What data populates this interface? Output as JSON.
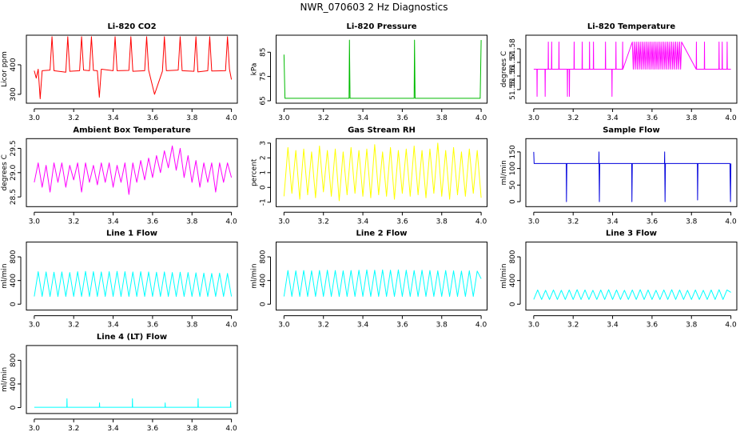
{
  "title": "NWR_070603 2 Hz Diagnostics",
  "chart_data": [
    {
      "type": "line",
      "title": "Li-820 CO2",
      "ylabel": "Licor ppm",
      "color": "#ff0000",
      "xlim": [
        2.96,
        4.03
      ],
      "xticks": [
        {
          "value": 3,
          "label": "3.0"
        },
        3.2,
        3.4,
        3.6,
        3.8,
        {
          "value": 4,
          "label": "4.0"
        }
      ],
      "ylim": [
        270,
        500
      ],
      "yticks": [
        300,
        400
      ],
      "x": [
        3,
        3.01,
        3.02,
        3.03,
        3.04,
        3.08,
        3.09,
        3.1,
        3.16,
        3.17,
        3.18,
        3.23,
        3.24,
        3.25,
        3.28,
        3.29,
        3.3,
        3.32,
        3.33,
        3.34,
        3.4,
        3.41,
        3.42,
        3.48,
        3.49,
        3.5,
        3.56,
        3.57,
        3.58,
        3.61,
        3.65,
        3.66,
        3.67,
        3.73,
        3.74,
        3.75,
        3.81,
        3.82,
        3.83,
        3.88,
        3.89,
        3.9,
        3.97,
        3.98,
        3.99,
        4
      ],
      "values": [
        380,
        355,
        385,
        285,
        380,
        382,
        495,
        380,
        375,
        495,
        378,
        380,
        495,
        382,
        380,
        495,
        381,
        380,
        290,
        385,
        380,
        495,
        380,
        381,
        495,
        378,
        380,
        495,
        382,
        300,
        378,
        495,
        380,
        382,
        495,
        380,
        378,
        495,
        376,
        380,
        495,
        379,
        380,
        495,
        385,
        350
      ]
    },
    {
      "type": "line",
      "title": "Li-820 Pressure",
      "ylabel": "kPa",
      "color": "#00bb00",
      "xlim": [
        2.96,
        4.03
      ],
      "xticks": [
        {
          "value": 3,
          "label": "3.0"
        },
        3.2,
        3.4,
        3.6,
        3.8,
        {
          "value": 4,
          "label": "4.0"
        }
      ],
      "ylim": [
        64,
        92
      ],
      "yticks": [
        65,
        75,
        85
      ],
      "x": [
        3,
        3.005,
        3.01,
        3.33,
        3.332,
        3.335,
        3.66,
        3.662,
        3.665,
        3.995,
        4
      ],
      "values": [
        84,
        66,
        66,
        66,
        90,
        66,
        66,
        90,
        66,
        66,
        90
      ]
    },
    {
      "type": "line",
      "title": "Li-820 Temperature",
      "ylabel": "degrees C",
      "color": "#ff00ff",
      "xlim": [
        2.96,
        4.03
      ],
      "xticks": [
        {
          "value": 3,
          "label": "3.0"
        },
        3.2,
        3.4,
        3.6,
        3.8,
        {
          "value": 4,
          "label": "4.0"
        }
      ],
      "ylim": [
        51.54,
        51.59
      ],
      "yticks": [
        51.55,
        51.56,
        51.57,
        51.58
      ],
      "x": [
        3,
        3.016,
        3.017,
        3.018,
        3.057,
        3.058,
        3.059,
        3.073,
        3.074,
        3.075,
        3.09,
        3.091,
        3.092,
        3.127,
        3.128,
        3.129,
        3.17,
        3.171,
        3.172,
        3.18,
        3.181,
        3.182,
        3.204,
        3.205,
        3.206,
        3.245,
        3.246,
        3.247,
        3.282,
        3.283,
        3.284,
        3.302,
        3.303,
        3.304,
        3.363,
        3.364,
        3.365,
        3.396,
        3.397,
        3.398,
        3.416,
        3.417,
        3.418,
        3.45,
        3.451,
        3.452,
        3.5,
        3.505,
        3.51,
        3.515,
        3.52,
        3.525,
        3.53,
        3.535,
        3.54,
        3.545,
        3.55,
        3.555,
        3.56,
        3.565,
        3.57,
        3.575,
        3.58,
        3.585,
        3.59,
        3.595,
        3.6,
        3.605,
        3.61,
        3.615,
        3.62,
        3.625,
        3.63,
        3.635,
        3.64,
        3.645,
        3.65,
        3.655,
        3.66,
        3.665,
        3.67,
        3.675,
        3.68,
        3.685,
        3.69,
        3.695,
        3.7,
        3.705,
        3.71,
        3.715,
        3.72,
        3.725,
        3.73,
        3.735,
        3.74,
        3.745,
        3.75,
        3.824,
        3.825,
        3.826,
        3.865,
        3.866,
        3.867,
        3.939,
        3.94,
        3.941,
        3.955,
        3.956,
        3.957,
        3.98,
        3.981,
        3.982,
        4
      ],
      "values": [
        51.565,
        51.565,
        51.545,
        51.565,
        51.565,
        51.545,
        51.565,
        51.565,
        51.585,
        51.565,
        51.565,
        51.585,
        51.565,
        51.565,
        51.585,
        51.565,
        51.565,
        51.545,
        51.565,
        51.565,
        51.545,
        51.565,
        51.565,
        51.585,
        51.565,
        51.565,
        51.585,
        51.565,
        51.565,
        51.585,
        51.565,
        51.565,
        51.585,
        51.565,
        51.565,
        51.585,
        51.565,
        51.565,
        51.545,
        51.565,
        51.565,
        51.585,
        51.565,
        51.565,
        51.585,
        51.565,
        51.585,
        51.565,
        51.585,
        51.565,
        51.585,
        51.565,
        51.585,
        51.565,
        51.585,
        51.565,
        51.585,
        51.565,
        51.585,
        51.565,
        51.585,
        51.565,
        51.585,
        51.565,
        51.585,
        51.565,
        51.585,
        51.565,
        51.585,
        51.565,
        51.585,
        51.565,
        51.585,
        51.565,
        51.585,
        51.565,
        51.585,
        51.565,
        51.585,
        51.565,
        51.585,
        51.565,
        51.585,
        51.565,
        51.585,
        51.565,
        51.585,
        51.565,
        51.585,
        51.565,
        51.585,
        51.565,
        51.585,
        51.565,
        51.585,
        51.565,
        51.585,
        51.565,
        51.585,
        51.565,
        51.565,
        51.585,
        51.565,
        51.565,
        51.585,
        51.565,
        51.565,
        51.585,
        51.565,
        51.565,
        51.585,
        51.565,
        51.565
      ]
    },
    {
      "type": "line",
      "title": "Ambient Box Temperature",
      "ylabel": "degrees C",
      "color": "#ff00ff",
      "xlim": [
        2.96,
        4.03
      ],
      "xticks": [
        {
          "value": 3,
          "label": "3.0"
        },
        3.2,
        3.4,
        3.6,
        3.8,
        {
          "value": 4,
          "label": "4.0"
        }
      ],
      "ylim": [
        28.3,
        29.7
      ],
      "yticks": [
        28.5,
        {
          "value": 29,
          "label": "29.0"
        },
        29.5
      ],
      "x": [
        3,
        3.02,
        3.04,
        3.06,
        3.08,
        3.1,
        3.12,
        3.14,
        3.16,
        3.18,
        3.2,
        3.22,
        3.24,
        3.26,
        3.28,
        3.3,
        3.32,
        3.34,
        3.36,
        3.38,
        3.4,
        3.42,
        3.44,
        3.46,
        3.48,
        3.5,
        3.52,
        3.54,
        3.56,
        3.58,
        3.6,
        3.62,
        3.64,
        3.66,
        3.68,
        3.7,
        3.72,
        3.74,
        3.76,
        3.78,
        3.8,
        3.82,
        3.84,
        3.86,
        3.88,
        3.9,
        3.92,
        3.94,
        3.96,
        3.98,
        4
      ],
      "values": [
        28.8,
        29.2,
        28.7,
        29.15,
        28.6,
        29.2,
        28.8,
        29.2,
        28.7,
        29.15,
        28.85,
        29.2,
        28.6,
        29.2,
        28.8,
        29.15,
        28.75,
        29.2,
        28.8,
        29.2,
        28.7,
        29.15,
        28.8,
        29.2,
        28.55,
        29.2,
        28.8,
        29.25,
        28.85,
        29.3,
        28.9,
        29.35,
        29.0,
        29.45,
        29.1,
        29.55,
        29.05,
        29.5,
        28.9,
        29.35,
        28.8,
        29.25,
        28.7,
        29.2,
        28.8,
        29.2,
        28.6,
        29.2,
        28.8,
        29.2,
        28.9
      ]
    },
    {
      "type": "line",
      "title": "Gas Stream RH",
      "ylabel": "percent",
      "color": "#ffff00",
      "xlim": [
        2.96,
        4.03
      ],
      "xticks": [
        {
          "value": 3,
          "label": "3.0"
        },
        3.2,
        3.4,
        3.6,
        3.8,
        {
          "value": 4,
          "label": "4.0"
        }
      ],
      "ylim": [
        -1.3,
        3.3
      ],
      "yticks": [
        -1,
        0,
        1,
        2,
        3
      ],
      "x": [
        3,
        3.02,
        3.04,
        3.06,
        3.08,
        3.1,
        3.12,
        3.14,
        3.16,
        3.18,
        3.2,
        3.22,
        3.24,
        3.26,
        3.28,
        3.3,
        3.32,
        3.34,
        3.36,
        3.38,
        3.4,
        3.42,
        3.44,
        3.46,
        3.48,
        3.5,
        3.52,
        3.54,
        3.56,
        3.58,
        3.6,
        3.62,
        3.64,
        3.66,
        3.68,
        3.7,
        3.72,
        3.74,
        3.76,
        3.78,
        3.8,
        3.82,
        3.84,
        3.86,
        3.88,
        3.9,
        3.92,
        3.94,
        3.96,
        3.98,
        4
      ],
      "values": [
        -0.6,
        2.7,
        -0.4,
        2.5,
        -0.8,
        2.6,
        -0.5,
        2.4,
        -0.7,
        2.8,
        -0.3,
        2.5,
        -0.6,
        2.6,
        -0.9,
        2.4,
        -0.5,
        2.7,
        -0.4,
        2.5,
        -0.6,
        2.6,
        -0.7,
        2.9,
        -0.5,
        2.4,
        -0.6,
        2.7,
        -0.8,
        2.5,
        -0.4,
        2.6,
        -0.6,
        2.8,
        -0.5,
        2.5,
        -0.7,
        2.6,
        -0.4,
        3.0,
        -0.6,
        2.5,
        -0.8,
        2.7,
        -0.5,
        2.4,
        -0.6,
        2.6,
        -0.4,
        2.5,
        -0.7
      ]
    },
    {
      "type": "line",
      "title": "Sample Flow",
      "ylabel": "ml/min",
      "color": "#0000dd",
      "xlim": [
        2.96,
        4.03
      ],
      "xticks": [
        {
          "value": 3,
          "label": "3.0"
        },
        3.2,
        3.4,
        3.6,
        3.8,
        {
          "value": 4,
          "label": "4.0"
        }
      ],
      "ylim": [
        -15,
        190
      ],
      "yticks": [
        0,
        50,
        100,
        150
      ],
      "x": [
        3,
        3.002,
        3.004,
        3.165,
        3.166,
        3.168,
        3.33,
        3.331,
        3.333,
        3.335,
        3.497,
        3.498,
        3.5,
        3.663,
        3.664,
        3.666,
        3.668,
        3.83,
        3.831,
        3.833,
        3.995,
        3.998,
        4
      ],
      "values": [
        150,
        115,
        115,
        115,
        0,
        115,
        115,
        150,
        0,
        115,
        115,
        0,
        115,
        115,
        150,
        0,
        115,
        115,
        5,
        115,
        115,
        0,
        115
      ]
    },
    {
      "type": "line",
      "title": "Line 1 Flow",
      "ylabel": "ml/min",
      "color": "#00ffff",
      "xlim": [
        2.96,
        4.03
      ],
      "xticks": [
        {
          "value": 3,
          "label": "3.0"
        },
        3.2,
        3.4,
        3.6,
        3.8,
        {
          "value": 4,
          "label": "4.0"
        }
      ],
      "ylim": [
        -100,
        1050
      ],
      "yticks": [
        0,
        400,
        800
      ],
      "x": [
        3,
        3.02,
        3.04,
        3.06,
        3.08,
        3.1,
        3.12,
        3.14,
        3.16,
        3.18,
        3.2,
        3.22,
        3.24,
        3.26,
        3.28,
        3.3,
        3.32,
        3.34,
        3.36,
        3.38,
        3.4,
        3.42,
        3.44,
        3.46,
        3.48,
        3.5,
        3.52,
        3.54,
        3.56,
        3.58,
        3.6,
        3.62,
        3.64,
        3.66,
        3.68,
        3.7,
        3.72,
        3.74,
        3.76,
        3.78,
        3.8,
        3.82,
        3.84,
        3.86,
        3.88,
        3.9,
        3.92,
        3.94,
        3.96,
        3.98,
        4
      ],
      "values": [
        130,
        550,
        130,
        545,
        130,
        540,
        130,
        545,
        130,
        535,
        130,
        550,
        130,
        555,
        130,
        550,
        130,
        545,
        130,
        550,
        130,
        555,
        130,
        550,
        130,
        545,
        130,
        550,
        130,
        545,
        130,
        540,
        130,
        545,
        130,
        535,
        130,
        540,
        130,
        535,
        130,
        530,
        130,
        525,
        130,
        520,
        130,
        525,
        130,
        520,
        130
      ]
    },
    {
      "type": "line",
      "title": "Line 2 Flow",
      "ylabel": "ml/min",
      "color": "#00ffff",
      "xlim": [
        2.96,
        4.03
      ],
      "xticks": [
        {
          "value": 3,
          "label": "3.0"
        },
        3.2,
        3.4,
        3.6,
        3.8,
        {
          "value": 4,
          "label": "4.0"
        }
      ],
      "ylim": [
        -100,
        1050
      ],
      "yticks": [
        0,
        400,
        800
      ],
      "x": [
        3,
        3.02,
        3.04,
        3.06,
        3.08,
        3.1,
        3.12,
        3.14,
        3.16,
        3.18,
        3.2,
        3.22,
        3.24,
        3.26,
        3.28,
        3.3,
        3.32,
        3.34,
        3.36,
        3.38,
        3.4,
        3.42,
        3.44,
        3.46,
        3.48,
        3.5,
        3.52,
        3.54,
        3.56,
        3.58,
        3.6,
        3.62,
        3.64,
        3.66,
        3.68,
        3.7,
        3.72,
        3.74,
        3.76,
        3.78,
        3.8,
        3.82,
        3.84,
        3.86,
        3.88,
        3.9,
        3.92,
        3.94,
        3.96,
        3.98,
        4
      ],
      "values": [
        130,
        570,
        130,
        565,
        130,
        570,
        130,
        565,
        130,
        570,
        130,
        575,
        130,
        570,
        130,
        565,
        130,
        570,
        130,
        575,
        130,
        580,
        130,
        575,
        130,
        580,
        130,
        575,
        130,
        580,
        130,
        575,
        130,
        570,
        130,
        575,
        130,
        570,
        130,
        565,
        130,
        570,
        130,
        565,
        130,
        560,
        130,
        565,
        130,
        560,
        430
      ]
    },
    {
      "type": "line",
      "title": "Line 3 Flow",
      "ylabel": "ml/min",
      "color": "#00ffff",
      "xlim": [
        2.96,
        4.03
      ],
      "xticks": [
        {
          "value": 3,
          "label": "3.0"
        },
        3.2,
        3.4,
        3.6,
        3.8,
        {
          "value": 4,
          "label": "4.0"
        }
      ],
      "ylim": [
        -100,
        1050
      ],
      "yticks": [
        0,
        400,
        800
      ],
      "x": [
        3,
        3.02,
        3.04,
        3.06,
        3.08,
        3.1,
        3.12,
        3.14,
        3.16,
        3.18,
        3.2,
        3.22,
        3.24,
        3.26,
        3.28,
        3.3,
        3.32,
        3.34,
        3.36,
        3.38,
        3.4,
        3.42,
        3.44,
        3.46,
        3.48,
        3.5,
        3.52,
        3.54,
        3.56,
        3.58,
        3.6,
        3.62,
        3.64,
        3.66,
        3.68,
        3.7,
        3.72,
        3.74,
        3.76,
        3.78,
        3.8,
        3.82,
        3.84,
        3.86,
        3.88,
        3.9,
        3.92,
        3.94,
        3.96,
        3.98,
        4
      ],
      "values": [
        80,
        240,
        80,
        235,
        80,
        240,
        80,
        235,
        80,
        240,
        80,
        245,
        80,
        240,
        80,
        235,
        80,
        240,
        80,
        245,
        80,
        240,
        80,
        235,
        80,
        240,
        80,
        245,
        80,
        240,
        80,
        235,
        80,
        240,
        80,
        245,
        80,
        240,
        80,
        235,
        80,
        240,
        80,
        235,
        80,
        240,
        80,
        245,
        80,
        240,
        200
      ]
    },
    {
      "type": "line",
      "title": "Line 4 (LT) Flow",
      "ylabel": "ml/min",
      "color": "#00ffff",
      "xlim": [
        2.96,
        4.03
      ],
      "xticks": [
        {
          "value": 3,
          "label": "3.0"
        },
        3.2,
        3.4,
        3.6,
        3.8,
        {
          "value": 4,
          "label": "4.0"
        }
      ],
      "ylim": [
        -100,
        1050
      ],
      "yticks": [
        0,
        400,
        800
      ],
      "x": [
        3,
        3.165,
        3.166,
        3.167,
        3.33,
        3.331,
        3.332,
        3.497,
        3.498,
        3.499,
        3.663,
        3.664,
        3.665,
        3.83,
        3.831,
        3.832,
        3.995,
        3.996,
        3.997,
        4
      ],
      "values": [
        5,
        5,
        150,
        5,
        5,
        80,
        5,
        5,
        150,
        5,
        5,
        80,
        5,
        5,
        150,
        5,
        5,
        100,
        5,
        5
      ]
    }
  ]
}
